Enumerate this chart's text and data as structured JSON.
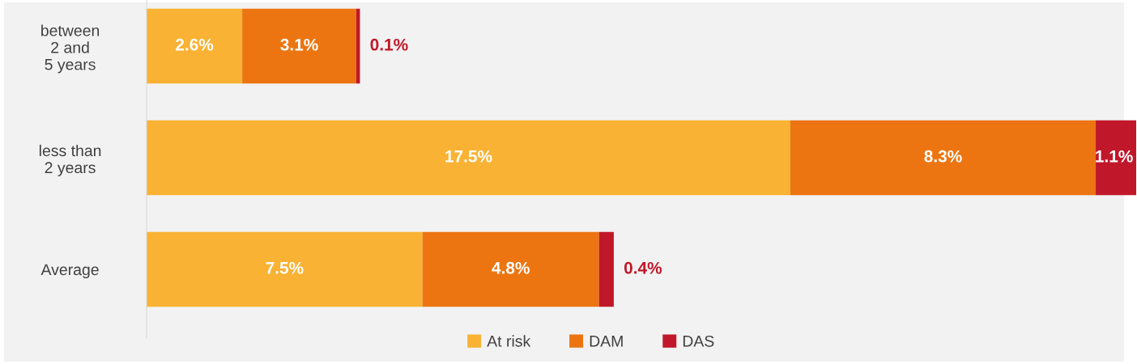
{
  "chart_data": {
    "type": "bar",
    "orientation": "horizontal",
    "stacked": true,
    "data_labels": true,
    "legend": "bottom",
    "grid": false,
    "categories": [
      "between\n2 and\n5 years",
      "less than\n2 years",
      "Average"
    ],
    "series": [
      {
        "name": "At risk",
        "color": "#f9b233",
        "values": [
          2.6,
          17.5,
          7.5
        ],
        "value_labels": [
          "2.6%",
          "17.5%",
          "7.5%"
        ]
      },
      {
        "name": "DAM",
        "color": "#ec7511",
        "values": [
          3.1,
          8.3,
          4.8
        ],
        "value_labels": [
          "3.1%",
          "8.3%",
          "4.8%"
        ]
      },
      {
        "name": "DAS",
        "color": "#c0182a",
        "values": [
          0.1,
          1.1,
          0.4
        ],
        "value_labels": [
          "0.1%",
          "1.1%",
          "0.4%"
        ]
      }
    ]
  }
}
